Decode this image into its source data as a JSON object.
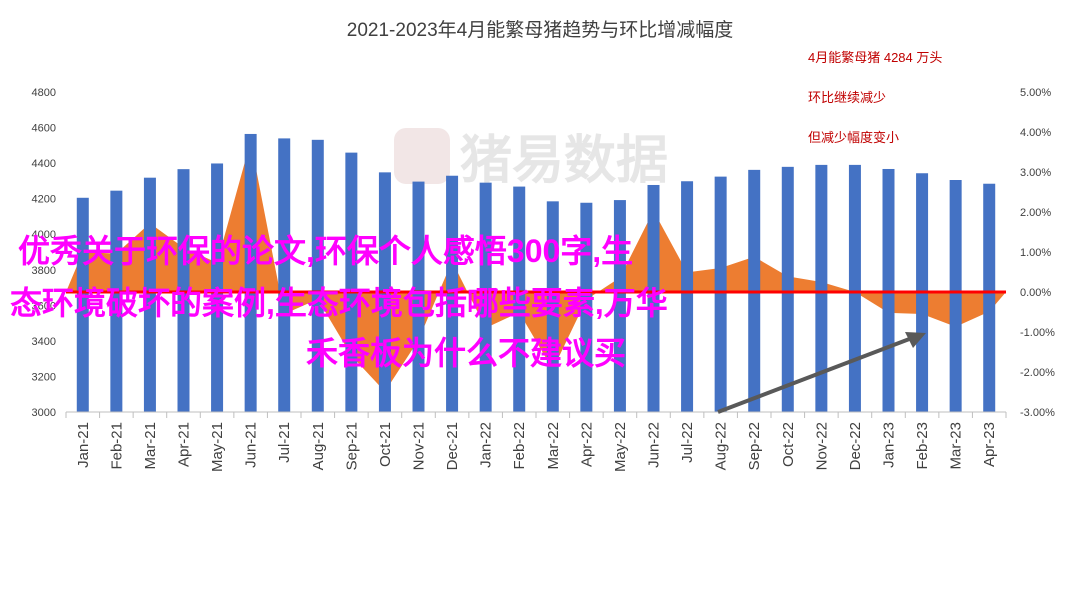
{
  "chart_data": {
    "type": "bar",
    "title": "2021-2023年4月能繁母猪趋势与环比增减幅度",
    "categories": [
      "Jan-21",
      "Feb-21",
      "Mar-21",
      "Apr-21",
      "May-21",
      "Jun-21",
      "Jul-21",
      "Aug-21",
      "Sep-21",
      "Oct-21",
      "Nov-21",
      "Dec-21",
      "Jan-22",
      "Feb-22",
      "Mar-22",
      "Apr-22",
      "May-22",
      "Jun-22",
      "Jul-22",
      "Aug-22",
      "Sep-22",
      "Oct-22",
      "Nov-22",
      "Dec-22",
      "Jan-23",
      "Feb-23",
      "Mar-23",
      "Apr-23"
    ],
    "series": [
      {
        "type": "bar",
        "color": "#4472c4",
        "axis": "left",
        "values": [
          4205,
          4245,
          4318,
          4366,
          4398,
          4564,
          4539,
          4531,
          4459,
          4348,
          4296,
          4329,
          4290,
          4268,
          4185,
          4177,
          4192,
          4277,
          4298,
          4324,
          4362,
          4379,
          4390,
          4390,
          4367,
          4343,
          4305,
          4284
        ]
      },
      {
        "type": "area",
        "color": "#ed7d31",
        "axis": "right",
        "values": [
          1.0,
          0.96,
          1.72,
          1.11,
          0.73,
          3.77,
          -0.55,
          -0.18,
          -1.59,
          -2.49,
          -1.2,
          0.77,
          -0.9,
          -0.51,
          -1.94,
          -0.19,
          0.36,
          2.03,
          0.49,
          0.6,
          0.88,
          0.39,
          0.25,
          0.0,
          -0.52,
          -0.55,
          -0.87,
          -0.49
        ]
      }
    ],
    "y_left": {
      "min": 3000,
      "max": 4800,
      "step": 200,
      "ticks": [
        "3000",
        "3200",
        "3400",
        "3600",
        "3800",
        "4000",
        "4200",
        "4400",
        "4600",
        "4800"
      ]
    },
    "y_right": {
      "min": -3.0,
      "max": 5.0,
      "step": 1.0,
      "ticks": [
        "-3.00%",
        "-2.00%",
        "-1.00%",
        "0.00%",
        "1.00%",
        "2.00%",
        "3.00%",
        "4.00%",
        "5.00%"
      ]
    },
    "annotations": [
      "4月能繁母猪 4284 万头",
      "环比继续减少",
      "但减少幅度变小"
    ],
    "watermark": "猪易数据",
    "overlay_text": [
      "优秀关于环保的论文,环保个人感悟300字,生",
      "态环境破坏的案例,生态环境包括哪些要素,万华",
      "禾香板为什么不建议买"
    ],
    "colors": {
      "bar": "#4472c4",
      "area": "#ed7d31",
      "zero_line": "#ff0000",
      "arrow": "#595959",
      "annotation": "#c00000",
      "overlay": "#ff00ff"
    },
    "grid": false,
    "legend": "none"
  }
}
